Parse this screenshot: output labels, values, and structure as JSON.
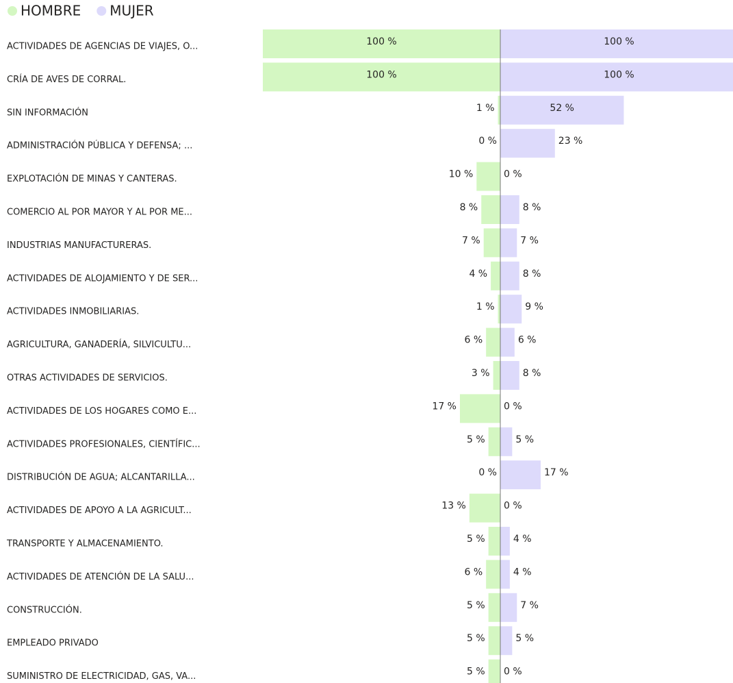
{
  "chart_data": {
    "type": "butterfly-bar",
    "categories": [
      "ACTIVIDADES DE AGENCIAS DE VIAJES, O...",
      "CRÍA DE AVES DE CORRAL.",
      "SIN INFORMACIÓN",
      "ADMINISTRACIÓN PÚBLICA Y DEFENSA; ...",
      "EXPLOTACIÓN DE MINAS Y CANTERAS.",
      "COMERCIO AL POR MAYOR Y AL POR ME...",
      "INDUSTRIAS MANUFACTURERAS.",
      "ACTIVIDADES DE ALOJAMIENTO Y DE SER...",
      "ACTIVIDADES INMOBILIARIAS.",
      "AGRICULTURA, GANADERÍA, SILVICULTU...",
      "OTRAS ACTIVIDADES DE SERVICIOS.",
      "ACTIVIDADES DE LOS HOGARES COMO E...",
      "ACTIVIDADES PROFESIONALES, CIENTÍFIC...",
      "DISTRIBUCIÓN DE AGUA; ALCANTARILLA...",
      "ACTIVIDADES DE APOYO A LA AGRICULT...",
      "TRANSPORTE Y ALMACENAMIENTO.",
      "ACTIVIDADES DE ATENCIÓN DE LA SALU...",
      "CONSTRUCCIÓN.",
      "EMPLEADO PRIVADO",
      "SUMINISTRO DE ELECTRICIDAD, GAS, VA..."
    ],
    "xlim": [
      0,
      100
    ],
    "series": [
      {
        "name": "HOMBRE",
        "color": "#d4f7c2",
        "values": [
          100,
          100,
          1,
          0,
          10,
          8,
          7,
          4,
          1,
          6,
          3,
          17,
          5,
          0,
          13,
          5,
          6,
          5,
          5,
          5
        ],
        "value_labels": [
          "100 %",
          "100 %",
          "1 %",
          "0 %",
          "10 %",
          "8 %",
          "7 %",
          "4 %",
          "1 %",
          "6 %",
          "3 %",
          "17 %",
          "5 %",
          "0 %",
          "13 %",
          "5 %",
          "6 %",
          "5 %",
          "5 %",
          "5 %"
        ]
      },
      {
        "name": "MUJER",
        "color": "#dddafb",
        "values": [
          100,
          100,
          52,
          23,
          0,
          8,
          7,
          8,
          9,
          6,
          8,
          0,
          5,
          17,
          0,
          4,
          4,
          7,
          5,
          0
        ],
        "value_labels": [
          "100 %",
          "100 %",
          "52 %",
          "23 %",
          "0 %",
          "8 %",
          "7 %",
          "8 %",
          "9 %",
          "6 %",
          "8 %",
          "0 %",
          "5 %",
          "17 %",
          "0 %",
          "4 %",
          "4 %",
          "7 %",
          "5 %",
          "0 %"
        ]
      }
    ]
  }
}
